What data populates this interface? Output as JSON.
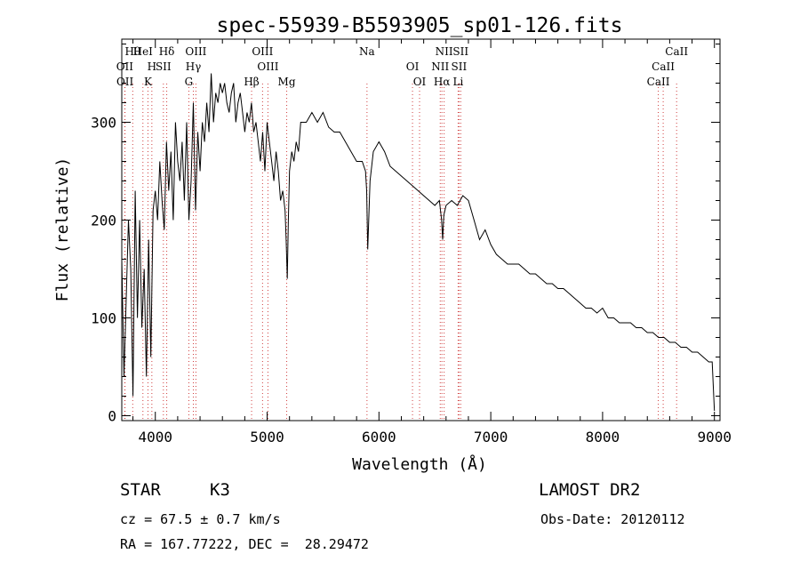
{
  "chart_data": {
    "type": "line",
    "title": "spec-55939-B5593905_sp01-126.fits",
    "xlabel": "Wavelength (Å)",
    "ylabel": "Flux (relative)",
    "xlim": [
      3700,
      9050
    ],
    "ylim": [
      -5,
      385
    ],
    "xticks": [
      4000,
      5000,
      6000,
      7000,
      8000,
      9000
    ],
    "yticks": [
      0,
      100,
      200,
      300
    ],
    "grid": false,
    "series": [
      {
        "color": "#000000",
        "x": [
          3700,
          3720,
          3740,
          3760,
          3780,
          3800,
          3820,
          3840,
          3860,
          3880,
          3900,
          3920,
          3940,
          3960,
          3980,
          4000,
          4020,
          4040,
          4060,
          4080,
          4100,
          4120,
          4140,
          4160,
          4180,
          4200,
          4220,
          4240,
          4260,
          4280,
          4300,
          4320,
          4340,
          4360,
          4380,
          4400,
          4420,
          4440,
          4460,
          4480,
          4500,
          4520,
          4540,
          4560,
          4580,
          4600,
          4620,
          4640,
          4660,
          4680,
          4700,
          4720,
          4740,
          4760,
          4780,
          4800,
          4820,
          4840,
          4860,
          4880,
          4900,
          4920,
          4940,
          4960,
          4980,
          5000,
          5020,
          5040,
          5060,
          5080,
          5100,
          5120,
          5140,
          5160,
          5170,
          5180,
          5190,
          5200,
          5220,
          5240,
          5260,
          5280,
          5300,
          5350,
          5400,
          5450,
          5500,
          5550,
          5600,
          5650,
          5700,
          5750,
          5800,
          5850,
          5880,
          5890,
          5900,
          5920,
          5950,
          6000,
          6050,
          6100,
          6150,
          6200,
          6250,
          6300,
          6350,
          6400,
          6450,
          6500,
          6540,
          6560,
          6570,
          6580,
          6600,
          6650,
          6700,
          6750,
          6800,
          6850,
          6900,
          6950,
          7000,
          7050,
          7100,
          7150,
          7200,
          7250,
          7300,
          7350,
          7400,
          7450,
          7500,
          7550,
          7600,
          7650,
          7700,
          7750,
          7800,
          7850,
          7900,
          7950,
          8000,
          8050,
          8100,
          8150,
          8200,
          8250,
          8300,
          8350,
          8400,
          8450,
          8500,
          8550,
          8600,
          8650,
          8700,
          8750,
          8800,
          8850,
          8900,
          8950,
          8980,
          9000
        ],
        "y": [
          160,
          40,
          120,
          200,
          150,
          20,
          230,
          100,
          200,
          90,
          150,
          40,
          180,
          60,
          210,
          230,
          200,
          260,
          220,
          190,
          280,
          230,
          270,
          200,
          300,
          260,
          240,
          280,
          220,
          300,
          200,
          240,
          320,
          210,
          290,
          250,
          300,
          280,
          320,
          290,
          350,
          300,
          330,
          320,
          340,
          330,
          340,
          320,
          310,
          330,
          340,
          300,
          320,
          330,
          310,
          290,
          310,
          300,
          320,
          290,
          300,
          280,
          260,
          290,
          250,
          300,
          280,
          260,
          240,
          270,
          250,
          220,
          230,
          210,
          180,
          140,
          200,
          250,
          270,
          260,
          280,
          270,
          300,
          300,
          310,
          300,
          310,
          295,
          290,
          290,
          280,
          270,
          260,
          260,
          250,
          230,
          170,
          240,
          270,
          280,
          270,
          255,
          250,
          245,
          240,
          235,
          230,
          225,
          220,
          215,
          220,
          200,
          180,
          205,
          215,
          220,
          215,
          225,
          220,
          200,
          180,
          190,
          175,
          165,
          160,
          155,
          155,
          155,
          150,
          145,
          145,
          140,
          135,
          135,
          130,
          130,
          125,
          120,
          115,
          110,
          110,
          105,
          110,
          100,
          100,
          95,
          95,
          95,
          90,
          90,
          85,
          85,
          80,
          80,
          75,
          75,
          70,
          70,
          65,
          65,
          60,
          55,
          55,
          5
        ]
      }
    ],
    "spectral_lines": [
      {
        "label": "Hθ",
        "x": 3798
      },
      {
        "label": "H",
        "x": 3969
      },
      {
        "label": "K",
        "x": 3934
      },
      {
        "label": "Hδ",
        "x": 4102
      },
      {
        "label": "OII",
        "x": 3727
      },
      {
        "label": "OII",
        "x": 3729
      },
      {
        "label": "HeI",
        "x": 3889
      },
      {
        "label": "SII",
        "x": 4072
      },
      {
        "label": "G",
        "x": 4300
      },
      {
        "label": "OIII",
        "x": 4363
      },
      {
        "label": "Hγ",
        "x": 4340
      },
      {
        "label": "Hβ",
        "x": 4861
      },
      {
        "label": "OIII",
        "x": 4959
      },
      {
        "label": "OIII",
        "x": 5007
      },
      {
        "label": "Mg",
        "x": 5175
      },
      {
        "label": "Na",
        "x": 5893
      },
      {
        "label": "OI",
        "x": 6300
      },
      {
        "label": "OI",
        "x": 6363
      },
      {
        "label": "NII",
        "x": 6583
      },
      {
        "label": "SII",
        "x": 6716
      },
      {
        "label": "Hα",
        "x": 6563
      },
      {
        "label": "SII",
        "x": 6731
      },
      {
        "label": "NII",
        "x": 6548
      },
      {
        "label": "Li",
        "x": 6708
      },
      {
        "label": "CaII",
        "x": 8662
      },
      {
        "label": "CaII",
        "x": 8542
      },
      {
        "label": "CaII",
        "x": 8498
      }
    ]
  },
  "info": {
    "class": "STAR",
    "subclass": "K3",
    "survey": "LAMOST DR2",
    "cz": "cz = 67.5 ± 0.7 km/s",
    "obs_date": "Obs-Date: 20120112",
    "radec": "RA = 167.77222, DEC =  28.29472"
  }
}
